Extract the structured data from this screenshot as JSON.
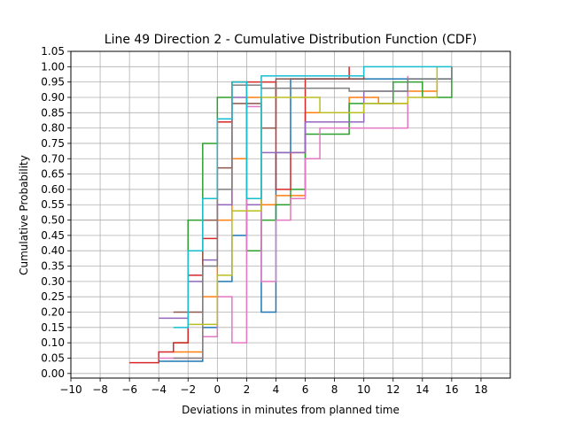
{
  "chart_data": {
    "type": "line",
    "step": true,
    "title": "Line 49 Direction 2 - Cumulative Distribution Function (CDF)",
    "xlabel": "Deviations in minutes from planned time",
    "ylabel": "Cumulative Probability",
    "xlim": [
      -10,
      20
    ],
    "ylim": [
      -0.015,
      1.05
    ],
    "xticks": [
      -10,
      -8,
      -6,
      -4,
      -2,
      0,
      2,
      4,
      6,
      8,
      10,
      12,
      14,
      16,
      18
    ],
    "xtick_labels": [
      "−10",
      "−8",
      "−6",
      "−4",
      "−2",
      "0",
      "2",
      "4",
      "6",
      "8",
      "10",
      "12",
      "14",
      "16",
      "18"
    ],
    "yticks": [
      0,
      0.05,
      0.1,
      0.15,
      0.2,
      0.25,
      0.3,
      0.35,
      0.4,
      0.45,
      0.5,
      0.55,
      0.6,
      0.65,
      0.7,
      0.75,
      0.8,
      0.85,
      0.9,
      0.95,
      1.0,
      1.05
    ],
    "ytick_labels": [
      "0.00",
      "0.05",
      "0.10",
      "0.15",
      "0.20",
      "0.25",
      "0.30",
      "0.35",
      "0.40",
      "0.45",
      "0.50",
      "0.55",
      "0.60",
      "0.65",
      "0.70",
      "0.75",
      "0.80",
      "0.85",
      "0.90",
      "0.95",
      "1.00",
      "1.05"
    ],
    "grid": true,
    "series": [
      {
        "color": "#1f77b4",
        "points": [
          [
            -3,
            0.04
          ],
          [
            -1,
            0.15
          ],
          [
            0,
            0.3
          ],
          [
            1,
            0.45
          ],
          [
            2,
            0.55
          ],
          [
            3,
            0.2
          ],
          [
            4,
            0.4
          ],
          [
            4,
            0.72
          ],
          [
            5,
            0.96
          ],
          [
            16,
            1.0
          ]
        ]
      },
      {
        "color": "#ff7f0e",
        "points": [
          [
            -2,
            0.07
          ],
          [
            -1,
            0.25
          ],
          [
            0,
            0.5
          ],
          [
            1,
            0.7
          ],
          [
            2,
            0.9
          ],
          [
            3,
            0.55
          ],
          [
            4,
            0.58
          ],
          [
            6,
            0.64
          ],
          [
            6,
            0.85
          ],
          [
            8,
            0.85
          ],
          [
            9,
            0.9
          ],
          [
            11,
            0.9
          ],
          [
            11,
            0.88
          ],
          [
            13,
            0.92
          ],
          [
            15,
            0.95
          ]
        ]
      },
      {
        "color": "#2ca02c",
        "points": [
          [
            -2,
            0.1
          ],
          [
            -2,
            0.5
          ],
          [
            -1,
            0.75
          ],
          [
            0,
            0.9
          ],
          [
            1,
            0.95
          ],
          [
            2,
            0.4
          ],
          [
            3,
            0.5
          ],
          [
            4,
            0.55
          ],
          [
            5,
            0.6
          ],
          [
            6,
            0.78
          ],
          [
            9,
            0.88
          ],
          [
            12,
            0.95
          ],
          [
            14,
            0.9
          ],
          [
            16,
            1.0
          ]
        ]
      },
      {
        "color": "#d62728",
        "points": [
          [
            -5,
            0.035
          ],
          [
            -4,
            0.07
          ],
          [
            -3,
            0.1
          ],
          [
            -2,
            0.32
          ],
          [
            -1,
            0.44
          ],
          [
            0,
            0.62
          ],
          [
            0,
            0.82
          ],
          [
            1,
            0.95
          ],
          [
            4,
            0.6
          ],
          [
            5,
            0.72
          ],
          [
            6,
            0.96
          ],
          [
            9,
            1.0
          ]
        ]
      },
      {
        "color": "#9467bd",
        "points": [
          [
            -3,
            0.18
          ],
          [
            -2,
            0.3
          ],
          [
            -1,
            0.37
          ],
          [
            0,
            0.55
          ],
          [
            1,
            0.9
          ],
          [
            2,
            0.55
          ],
          [
            3,
            0.72
          ],
          [
            5,
            0.72
          ],
          [
            6,
            0.82
          ],
          [
            10,
            0.92
          ],
          [
            13,
            0.96
          ]
        ]
      },
      {
        "color": "#8c564b",
        "points": [
          [
            -2,
            0.2
          ],
          [
            -1,
            0.5
          ],
          [
            0,
            0.67
          ],
          [
            1,
            0.88
          ],
          [
            3,
            0.8
          ],
          [
            4,
            0.96
          ],
          [
            7,
            0.96
          ],
          [
            10,
            0.97
          ]
        ]
      },
      {
        "color": "#e377c2",
        "points": [
          [
            -3,
            0.05
          ],
          [
            -1,
            0.12
          ],
          [
            0,
            0.25
          ],
          [
            1,
            0.1
          ],
          [
            2,
            0.15
          ],
          [
            2,
            0.87
          ],
          [
            3,
            0.3
          ],
          [
            4,
            0.5
          ],
          [
            5,
            0.57
          ],
          [
            6,
            0.7
          ],
          [
            7,
            0.8
          ],
          [
            13,
            0.8
          ],
          [
            13,
            0.97
          ]
        ]
      },
      {
        "color": "#7f7f7f",
        "points": [
          [
            -2,
            0.05
          ],
          [
            -1,
            0.35
          ],
          [
            0,
            0.6
          ],
          [
            1,
            0.94
          ],
          [
            3,
            0.93
          ],
          [
            5,
            0.93
          ],
          [
            9,
            0.92
          ],
          [
            13,
            0.96
          ],
          [
            14,
            0.96
          ],
          [
            16,
            1.0
          ]
        ]
      },
      {
        "color": "#bcbd22",
        "points": [
          [
            -1,
            0.16
          ],
          [
            0,
            0.32
          ],
          [
            1,
            0.53
          ],
          [
            2,
            0.53
          ],
          [
            3,
            0.9
          ],
          [
            7,
            0.85
          ],
          [
            10,
            0.88
          ],
          [
            13,
            0.9
          ],
          [
            15,
            1.0
          ]
        ]
      },
      {
        "color": "#17becf",
        "points": [
          [
            -2,
            0.15
          ],
          [
            -2,
            0.4
          ],
          [
            -1,
            0.57
          ],
          [
            0,
            0.83
          ],
          [
            1,
            0.95
          ],
          [
            2,
            0.57
          ],
          [
            3,
            0.97
          ],
          [
            10,
            1.0
          ],
          [
            16,
            1.0
          ]
        ]
      }
    ]
  }
}
